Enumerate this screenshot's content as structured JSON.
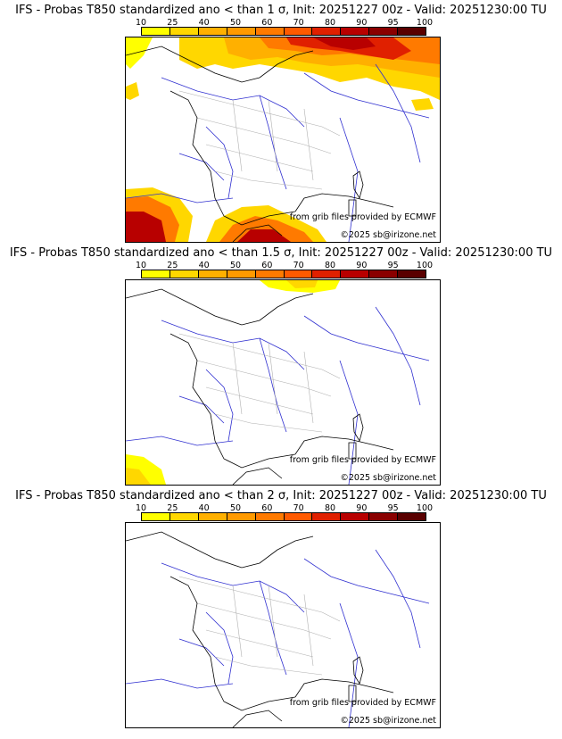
{
  "colorbar": {
    "ticks": [
      "10",
      "25",
      "40",
      "50",
      "60",
      "70",
      "80",
      "90",
      "95",
      "100"
    ],
    "colors": [
      "#ffff00",
      "#ffd700",
      "#ffb000",
      "#ff9a00",
      "#ff7a00",
      "#ff5a00",
      "#e02000",
      "#b80000",
      "#8a0000",
      "#5a0000"
    ]
  },
  "credit": "from grib files provided by ECMWF",
  "copyright": "©2025 sb@irizone.net",
  "panels": [
    {
      "title": "IFS - Probas T850  standardized ano < than 1 σ, Init: 20251227 00z - Valid: 20251230:00 TU",
      "threshold": "1"
    },
    {
      "title": "IFS - Probas T850  standardized ano < than 1.5 σ, Init: 20251227 00z - Valid: 20251230:00 TU",
      "threshold": "1.5"
    },
    {
      "title": "IFS - Probas T850  standardized ano < than 2 σ, Init: 20251227 00z - Valid: 20251230:00 TU",
      "threshold": "2"
    }
  ]
}
